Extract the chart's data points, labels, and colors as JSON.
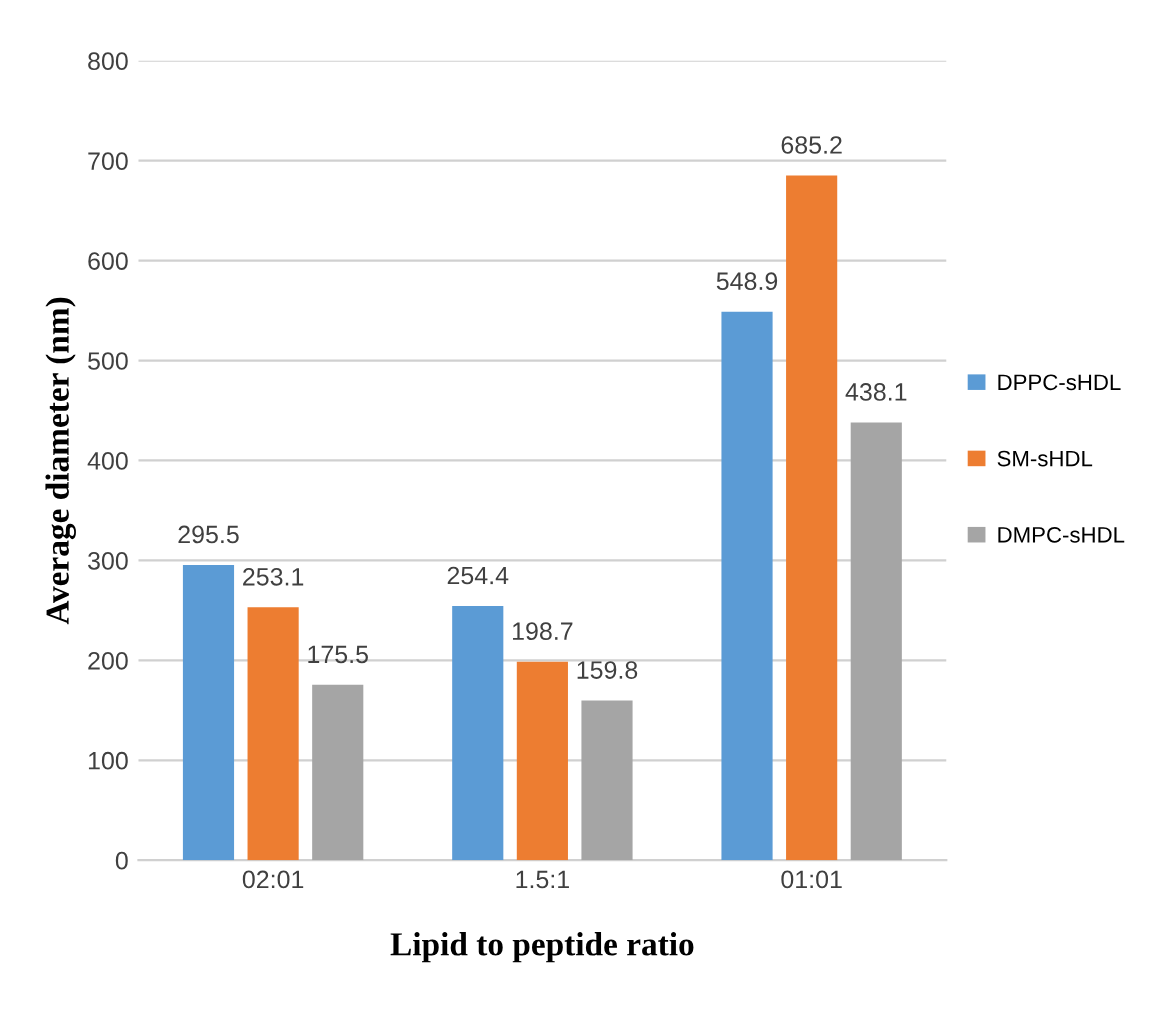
{
  "chart_data": {
    "type": "bar",
    "xlabel": "Lipid to peptide ratio",
    "ylabel": "Average diameter (nm)",
    "categories": [
      "02:01",
      "1.5:1",
      "01:01"
    ],
    "series": [
      {
        "name": "DPPC-sHDL",
        "color": "#5b9bd5",
        "values": [
          295.5,
          254.4,
          548.9
        ]
      },
      {
        "name": "SM-sHDL",
        "color": "#ed7d31",
        "values": [
          253.1,
          198.7,
          685.2
        ]
      },
      {
        "name": "DMPC-sHDL",
        "color": "#a5a5a5",
        "values": [
          175.5,
          159.8,
          438.1
        ]
      }
    ],
    "ylim": [
      0,
      800
    ],
    "yticks": [
      0,
      100,
      200,
      300,
      400,
      500,
      600,
      700,
      800
    ],
    "grid": "y",
    "legend": "right",
    "data_labels": true
  }
}
